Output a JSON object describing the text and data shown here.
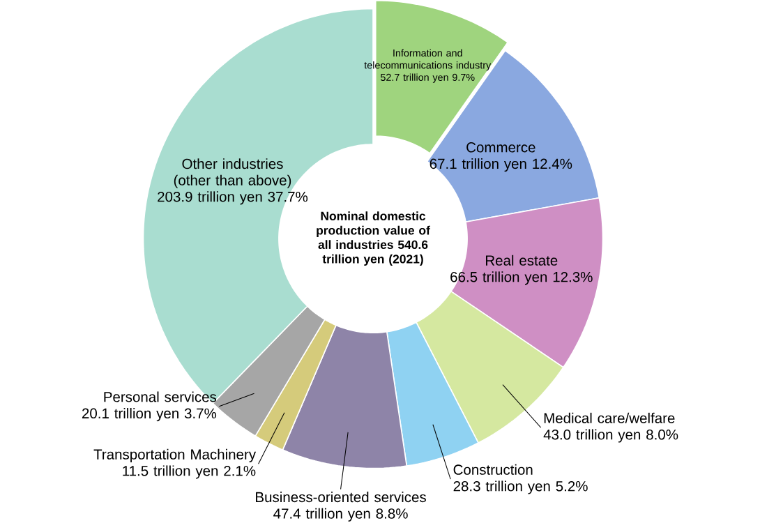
{
  "chart_data": {
    "type": "donut",
    "title": "Nominal domestic production value of all industries 540.6 trillion yen (2021)",
    "categories": [
      "Information and telecommunications industry",
      "Commerce",
      "Real estate",
      "Medical care/welfare",
      "Construction",
      "Business-oriented services",
      "Transportation Machinery",
      "Personal services",
      "Other industries (other than above)"
    ],
    "values": [
      52.7,
      67.1,
      66.5,
      43.0,
      28.3,
      47.4,
      11.5,
      20.1,
      203.9
    ],
    "value_labels": [
      "52.7 trillion yen 9.7%",
      "67.1 trillion yen 12.4%",
      "66.5 trillion yen 12.3%",
      "43.0 trillion yen 8.0%",
      "28.3 trillion yen 5.2%",
      "47.4 trillion yen 8.8%",
      "11.5 trillion yen 2.1%",
      "20.1 trillion yen 3.7%",
      "203.9 trillion yen 37.7%"
    ],
    "colors": [
      "#9fd47e",
      "#8aa8e0",
      "#cf8fc4",
      "#d5e8a0",
      "#8fd2f2",
      "#8e84a8",
      "#d5cb7b",
      "#a6a6a6",
      "#a9ddd0"
    ]
  }
}
